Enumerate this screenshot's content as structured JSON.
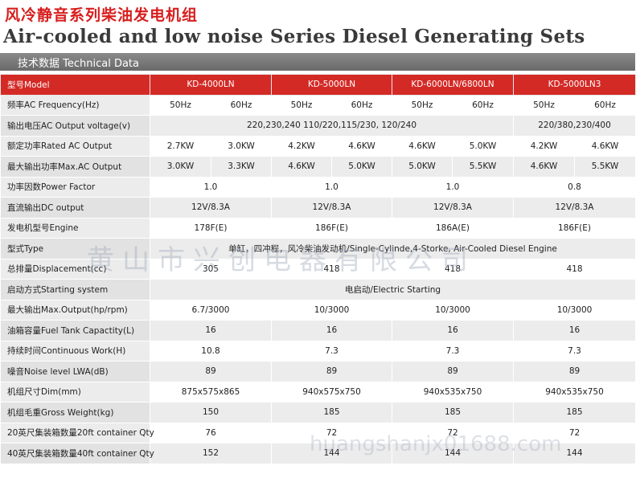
{
  "title_cn": "风冷静音系列柴油发电机组",
  "title_en": "Air-cooled and low noise Series Diesel Generating Sets",
  "section_label": "技术数据 Technical Data",
  "watermark": "黄山市兴创电器有限公司",
  "watermark_url": "huangshanjx01688.com",
  "colors": {
    "accent_red": "#d42a26",
    "title_red": "#d81e1e",
    "section_gray": "#7a7a7a"
  },
  "models": {
    "label": "型号Model",
    "items": [
      "KD-4000LN",
      "KD-5000LN",
      "KD-6000LN/6800LN",
      "KD-5000LN3"
    ]
  },
  "frequency": {
    "label": "频率AC Frequency(Hz)",
    "values": [
      "50Hz",
      "60Hz",
      "50Hz",
      "60Hz",
      "50Hz",
      "60Hz",
      "50Hz",
      "60Hz"
    ]
  },
  "voltage": {
    "label": "输出电压AC Output voltage(v)",
    "single_phase": "220,230,240  110/220,115/230, 120/240",
    "three_phase": "220/380,230/400"
  },
  "rated_output": {
    "label": "额定功率Rated AC Output",
    "values": [
      "2.7KW",
      "3.0KW",
      "4.2KW",
      "4.6KW",
      "4.6KW",
      "5.0KW",
      "4.2KW",
      "4.6KW"
    ]
  },
  "max_output": {
    "label": "最大输出功率Max.AC Output",
    "values": [
      "3.0KW",
      "3.3KW",
      "4.6KW",
      "5.0KW",
      "5.0KW",
      "5.5KW",
      "4.6KW",
      "5.5KW"
    ]
  },
  "power_factor": {
    "label": "功率因数Power Factor",
    "values": [
      "1.0",
      "1.0",
      "1.0",
      "0.8"
    ]
  },
  "dc_output": {
    "label": "直流输出DC output",
    "values": [
      "12V/8.3A",
      "12V/8.3A",
      "12V/8.3A",
      "12V/8.3A"
    ]
  },
  "engine": {
    "label": "发电机型号Engine",
    "values": [
      "178F(E)",
      "186F(E)",
      "186A(E)",
      "186F(E)"
    ]
  },
  "type": {
    "label": "型式Type",
    "value": "单缸，四冲程，风冷柴油发动机/Single-Cylinde,4-Storke, Air-Cooled Diesel Engine"
  },
  "displacement": {
    "label": "总排量Displacement(cc)",
    "values": [
      "305",
      "418",
      "418",
      "418"
    ]
  },
  "starting": {
    "label": "启动方式Starting system",
    "value": "电启动/Electric Starting"
  },
  "max_engine_output": {
    "label": "最大输出Max.Output(hp/rpm)",
    "values": [
      "6.7/3000",
      "10/3000",
      "10/3000",
      "10/3000"
    ]
  },
  "fuel_tank": {
    "label": "油箱容量Fuel Tank Capactity(L)",
    "values": [
      "16",
      "16",
      "16",
      "16"
    ]
  },
  "continuous_work": {
    "label": "持续时间Continuous Work(H)",
    "values": [
      "10.8",
      "7.3",
      "7.3",
      "7.3"
    ]
  },
  "noise": {
    "label": "噪音Noise level LWA(dB)",
    "values": [
      "89",
      "89",
      "89",
      "89"
    ]
  },
  "dimension": {
    "label": "机组尺寸Dim(mm)",
    "values": [
      "875x575x865",
      "940x575x750",
      "940x535x750",
      "940x535x750"
    ]
  },
  "gross_weight": {
    "label": "机组毛重Gross Weight(kg)",
    "values": [
      "150",
      "185",
      "185",
      "185"
    ]
  },
  "container_20": {
    "label": "20英尺集装箱数量20ft container Qty",
    "values": [
      "76",
      "72",
      "72",
      "72"
    ]
  },
  "container_40": {
    "label": "40英尺集装箱数量40ft container Qty",
    "values": [
      "152",
      "144",
      "144",
      "144"
    ]
  }
}
